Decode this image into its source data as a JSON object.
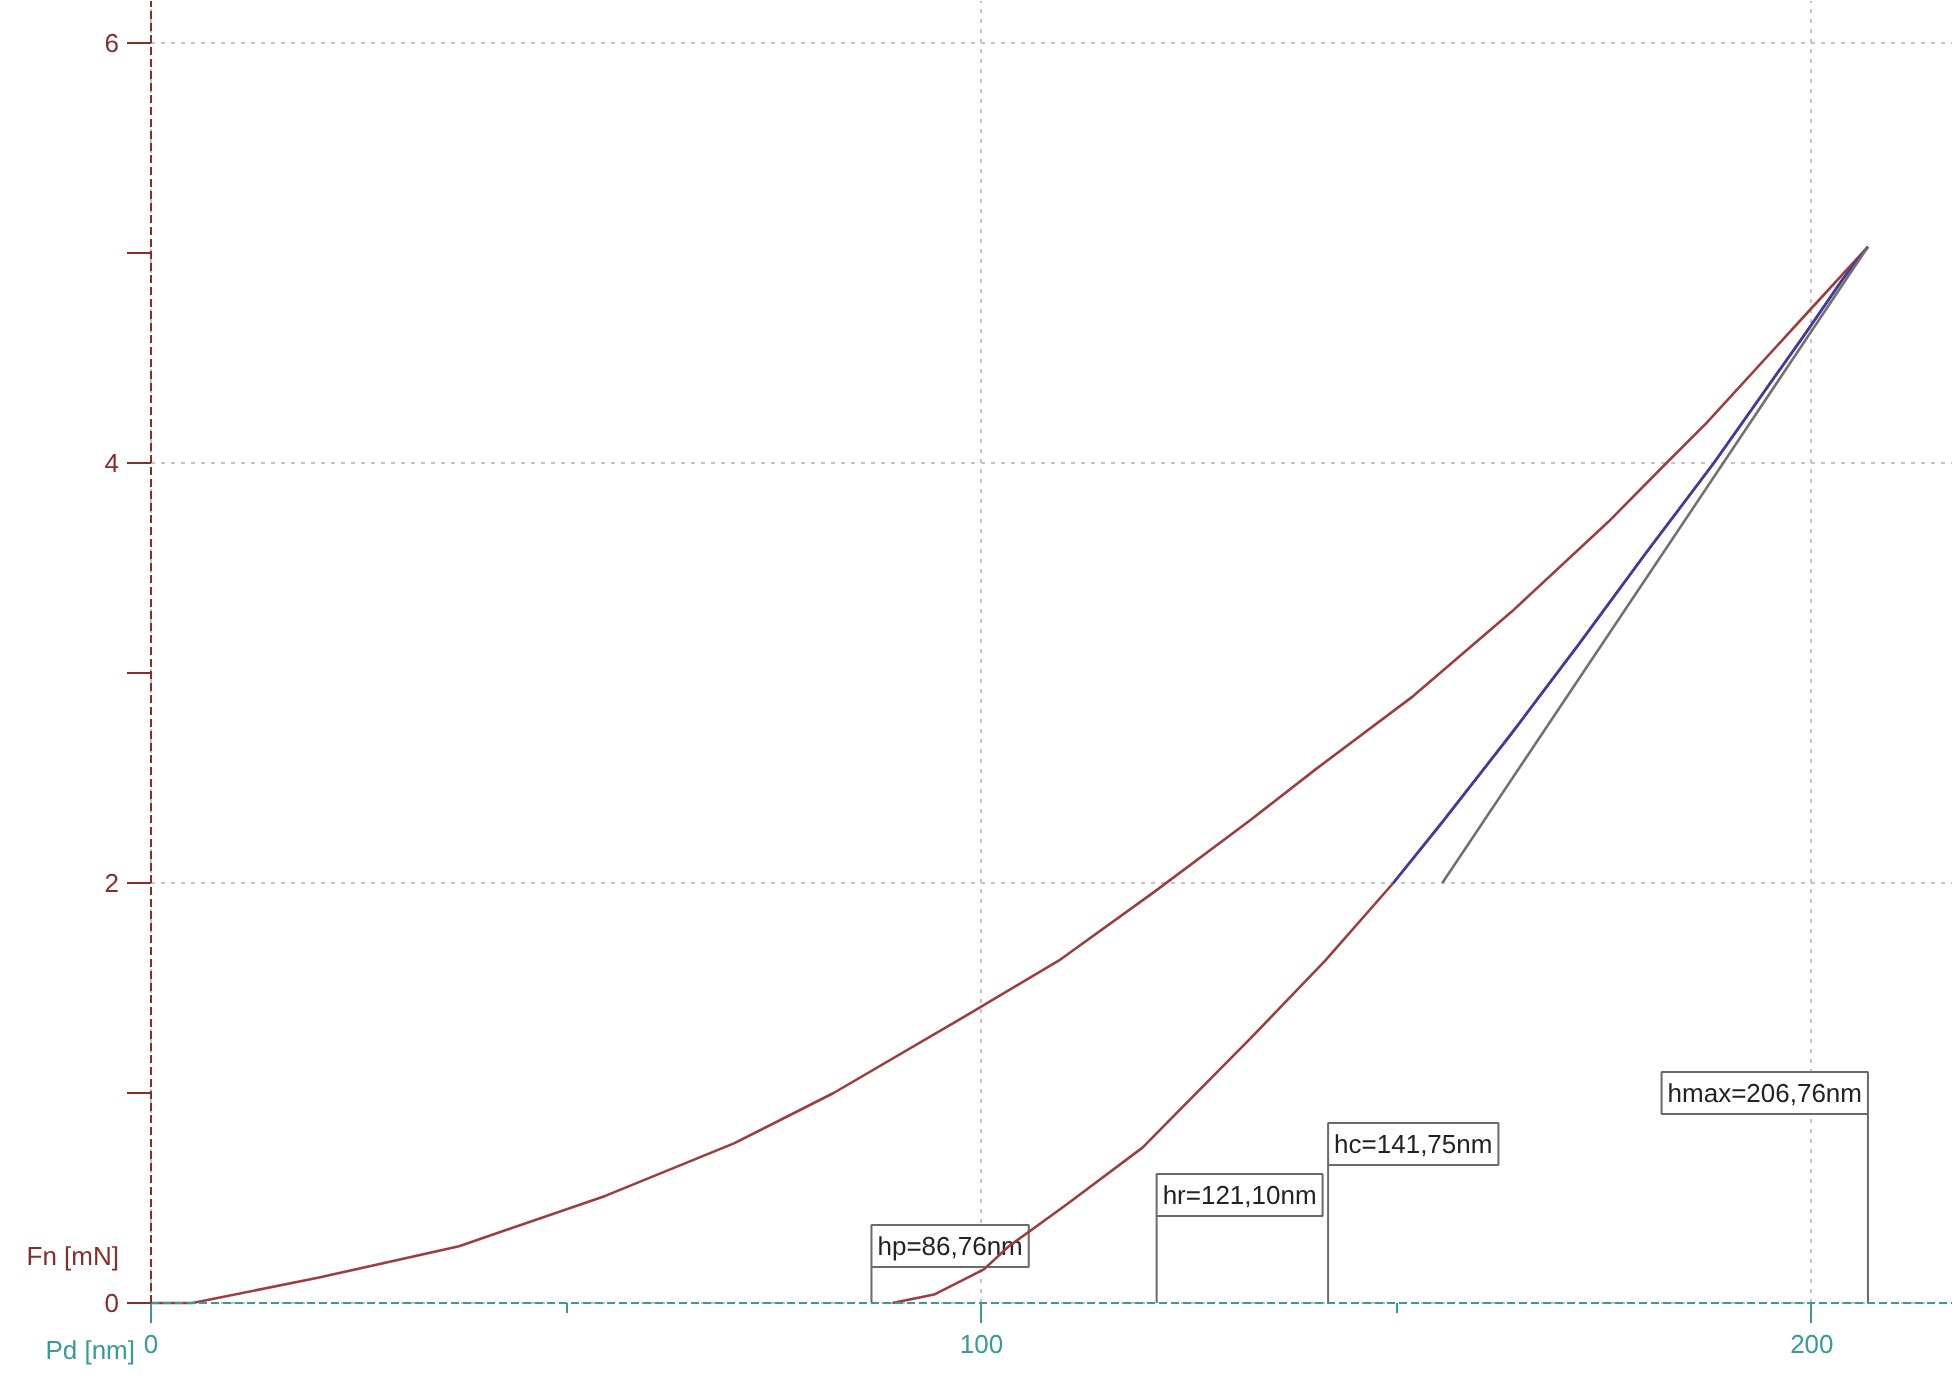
{
  "chart_data": {
    "type": "line",
    "xlabel": "Pd [nm]",
    "ylabel": "Fn [mN]",
    "xlim": [
      0,
      217
    ],
    "ylim": [
      0,
      6.2
    ],
    "xticks": [
      0,
      {
        "value": 50,
        "label": null
      },
      100,
      {
        "value": 150,
        "label": null
      },
      200
    ],
    "yticks": [
      0,
      {
        "value": 1,
        "label": null
      },
      2,
      {
        "value": 3,
        "label": null
      },
      4,
      {
        "value": 5,
        "label": null
      },
      6
    ],
    "grid": true,
    "series": [
      {
        "color": "#9c3d3d",
        "x": [
          0,
          5,
          20.1,
          37.1,
          54.7,
          70.2,
          82.2,
          97.8,
          109.3,
          120.9,
          132.4,
          140.2,
          152,
          163.8,
          175.5,
          182.5,
          187.3,
          199.1,
          206.76
        ],
        "values": [
          0,
          0,
          0.12,
          0.27,
          0.51,
          0.76,
          1.0,
          1.36,
          1.63,
          1.96,
          2.3,
          2.54,
          2.89,
          3.29,
          3.72,
          4.0,
          4.19,
          4.7,
          5.03
        ]
      },
      {
        "color": "#9c3d3d",
        "x": [
          206.76,
          203.8,
          199.1,
          193.2,
          188.2,
          180,
          172,
          163.8,
          155.5,
          149.6,
          141.4,
          132.4,
          125.4,
          119.4,
          110.3,
          103.3,
          100.3,
          94.3,
          89.3
        ],
        "values": [
          5.03,
          4.88,
          4.61,
          4.28,
          4.0,
          3.57,
          3.14,
          2.71,
          2.29,
          2.0,
          1.63,
          1.26,
          0.98,
          0.74,
          0.47,
          0.27,
          0.16,
          0.04,
          0
        ]
      },
      {
        "color": "#3c3ca8",
        "x": [
          149.6,
          155.5,
          163.8,
          172,
          180,
          188.2,
          193.2,
          199.1,
          203.8,
          206.76
        ],
        "values": [
          2.0,
          2.29,
          2.71,
          3.14,
          3.57,
          4.0,
          4.28,
          4.61,
          4.88,
          5.03
        ]
      },
      {
        "color": "#707070",
        "x": [
          155.5,
          206.76
        ],
        "values": [
          2.0,
          5.03
        ]
      }
    ],
    "ref_lines": [
      {
        "axis": "x",
        "value": 86.76,
        "label": "hp=86,76nm"
      },
      {
        "axis": "x",
        "value": 121.1,
        "label": "hr=121,10nm"
      },
      {
        "axis": "x",
        "value": 141.75,
        "label": "hc=141,75nm"
      },
      {
        "axis": "x",
        "value": 206.76,
        "label": "hmax=206,76nm"
      }
    ]
  }
}
